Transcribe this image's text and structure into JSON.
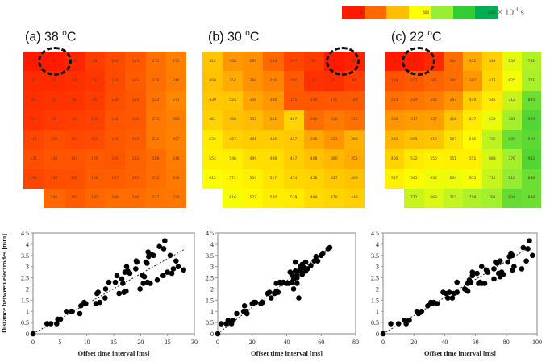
{
  "legend": {
    "colors": [
      "#ff1a00",
      "#ff6a00",
      "#ffbf00",
      "#ffff00",
      "#99ee33",
      "#33cc33",
      "#00b050"
    ],
    "labels": [
      "0",
      "",
      "",
      "600",
      "",
      "",
      "1200"
    ],
    "unit_prefix": "× 10",
    "unit_exp": "-4",
    "unit_suffix": " s"
  },
  "colormap": {
    "min": 0,
    "max": 1200
  },
  "panels": [
    {
      "title_prefix": "(a) 38 ",
      "title_sup": "o",
      "title_suffix": "C",
      "grid": [
        [
          0,
          0,
          30,
          88,
          120,
          154,
          215,
          251
        ],
        [
          43,
          43,
          53,
          71,
          120,
          165,
          210,
          246
        ],
        [
          56,
          63,
          66,
          86,
          130,
          154,
          222,
          271
        ],
        [
          59,
          83,
          90,
          100,
          148,
          156,
          233,
          250
        ],
        [
          111,
          129,
          114,
          123,
          158,
          169,
          234,
          257
        ],
        [
          131,
          148,
          148,
          159,
          150,
          183,
          208,
          248
        ],
        [
          108,
          130,
          132,
          168,
          167,
          185,
          212,
          238
        ],
        [
          null,
          194,
          165,
          187,
          208,
          206,
          227,
          230
        ]
      ],
      "origin_cell": [
        0,
        1
      ]
    },
    {
      "title_prefix": "(b) 30 ",
      "title_sup": "o",
      "title_suffix": "C",
      "grid": [
        [
          422,
          308,
          289,
          194,
          107,
          83,
          0,
          18
        ],
        [
          408,
          354,
          294,
          256,
          160,
          57,
          51,
          89
        ],
        [
          430,
          424,
          338,
          306,
          155,
          150,
          155,
          160
        ],
        [
          461,
          408,
          392,
          351,
          467,
          206,
          238,
          213
        ],
        [
          536,
          457,
          441,
          445,
          427,
          346,
          303,
          368
        ],
        [
          554,
          546,
          499,
          498,
          447,
          408,
          380,
          352
        ],
        [
          612,
          572,
          550,
          517,
          474,
          458,
          427,
          409
        ],
        [
          null,
          616,
          577,
          540,
          539,
          489,
          470,
          449
        ]
      ],
      "origin_cell": [
        0,
        6
      ]
    },
    {
      "title_prefix": "(c) 22 ",
      "title_sup": "o",
      "title_suffix": "C",
      "grid": [
        [
          0,
          0,
          37,
          204,
          351,
          449,
          654,
          752
        ],
        [
          140,
          157,
          185,
          204,
          307,
          473,
          625,
          771
        ],
        [
          214,
          229,
          245,
          297,
          449,
          542,
          712,
          895
        ],
        [
          302,
          317,
          327,
          416,
          537,
          639,
          781,
          939
        ],
        [
          380,
          405,
          419,
          507,
          585,
          732,
          890,
          919
        ],
        [
          460,
          532,
          556,
          551,
          551,
          688,
          776,
          942
        ],
        [
          557,
          585,
          634,
          634,
          615,
          712,
          810,
          888
        ],
        [
          null,
          712,
          668,
          717,
          759,
          781,
          904,
          888
        ]
      ],
      "origin_cell": [
        0,
        1
      ]
    }
  ],
  "chart_data": [
    {
      "type": "scatter",
      "title": "",
      "xlabel": "Offset time interval [ms]",
      "ylabel": "Distance between electrodes [mm]",
      "xlim": [
        0,
        30
      ],
      "ylim": [
        0,
        4.5
      ],
      "xticks": [
        "0",
        "5",
        "10",
        "15",
        "20",
        "25",
        "30"
      ],
      "yticks": [
        "0",
        "0.5",
        "1",
        "1.5",
        "2",
        "2.5",
        "3",
        "3.5",
        "4",
        "4.5"
      ],
      "trendline": {
        "x": [
          0,
          28
        ],
        "y": [
          0,
          3.75
        ]
      },
      "points": [
        [
          0,
          0
        ],
        [
          2.6,
          0.45
        ],
        [
          3.3,
          0.45
        ],
        [
          4.4,
          0.45
        ],
        [
          4.6,
          0.65
        ],
        [
          5.1,
          0.65
        ],
        [
          6.2,
          1.0
        ],
        [
          7.1,
          1.0
        ],
        [
          7.3,
          1.0
        ],
        [
          8.7,
          0.9
        ],
        [
          8.9,
          1.25
        ],
        [
          9.3,
          1.35
        ],
        [
          9.5,
          1.4
        ],
        [
          9.8,
          1.35
        ],
        [
          11.7,
          1.35
        ],
        [
          11.9,
          1.8
        ],
        [
          12.1,
          1.85
        ],
        [
          12.4,
          1.4
        ],
        [
          13.4,
          1.6
        ],
        [
          13.5,
          2.0
        ],
        [
          14.1,
          2.3
        ],
        [
          15.3,
          2.3
        ],
        [
          15.6,
          2.6
        ],
        [
          16.0,
          1.8
        ],
        [
          16.5,
          2.45
        ],
        [
          16.7,
          2.25
        ],
        [
          16.9,
          1.85
        ],
        [
          17.1,
          2.75
        ],
        [
          17.3,
          1.9
        ],
        [
          17.4,
          3.0
        ],
        [
          17.6,
          2.8
        ],
        [
          18.0,
          2.7
        ],
        [
          19.1,
          2.9
        ],
        [
          19.2,
          3.25
        ],
        [
          19.3,
          3.2
        ],
        [
          19.9,
          2.0
        ],
        [
          20.4,
          2.6
        ],
        [
          20.5,
          2.25
        ],
        [
          20.7,
          2.55
        ],
        [
          21.0,
          3.2
        ],
        [
          21.2,
          3.15
        ],
        [
          21.3,
          2.3
        ],
        [
          21.4,
          3.65
        ],
        [
          21.5,
          3.45
        ],
        [
          21.8,
          2.25
        ],
        [
          22.0,
          3.55
        ],
        [
          22.4,
          3.5
        ],
        [
          23.1,
          2.4
        ],
        [
          23.5,
          3.9
        ],
        [
          24.2,
          2.6
        ],
        [
          24.3,
          3.8
        ],
        [
          24.5,
          4.15
        ],
        [
          25.0,
          2.75
        ],
        [
          25.5,
          3.5
        ],
        [
          25.8,
          2.7
        ],
        [
          26.1,
          2.9
        ],
        [
          26.6,
          3.25
        ],
        [
          27.0,
          3.0
        ],
        [
          28.0,
          2.85
        ]
      ]
    },
    {
      "type": "scatter",
      "title": "",
      "xlabel": "Offset time interval [ms]",
      "ylabel": "",
      "xlim": [
        0,
        80
      ],
      "ylim": [
        0,
        4.5
      ],
      "xticks": [
        "0",
        "20",
        "40",
        "60",
        "80"
      ],
      "yticks": [
        "0",
        "0.5",
        "1",
        "1.5",
        "2",
        "2.5",
        "3",
        "3.5",
        "4",
        "4.5"
      ],
      "trendline": {
        "x": [
          0,
          65
        ],
        "y": [
          0,
          3.85
        ]
      },
      "points": [
        [
          0,
          0
        ],
        [
          2,
          0.45
        ],
        [
          5,
          0.45
        ],
        [
          6,
          0.6
        ],
        [
          8,
          0.45
        ],
        [
          9,
          0.6
        ],
        [
          11,
          0.9
        ],
        [
          15,
          1.0
        ],
        [
          15.5,
          1.25
        ],
        [
          16,
          0.95
        ],
        [
          16.5,
          1.0
        ],
        [
          17,
          0.9
        ],
        [
          20,
          1.35
        ],
        [
          21,
          1.4
        ],
        [
          22,
          1.4
        ],
        [
          25,
          1.35
        ],
        [
          26,
          1.4
        ],
        [
          29,
          1.8
        ],
        [
          30,
          1.85
        ],
        [
          31,
          1.6
        ],
        [
          33,
          1.8
        ],
        [
          34,
          1.9
        ],
        [
          34,
          2.25
        ],
        [
          35,
          1.85
        ],
        [
          36,
          2.3
        ],
        [
          37,
          2.25
        ],
        [
          38,
          2.3
        ],
        [
          40,
          2.25
        ],
        [
          41,
          2.25
        ],
        [
          42,
          2.75
        ],
        [
          43,
          2.3
        ],
        [
          43,
          2.65
        ],
        [
          44,
          2.0
        ],
        [
          44,
          2.45
        ],
        [
          45,
          2.8
        ],
        [
          45,
          3.2
        ],
        [
          46,
          2.5
        ],
        [
          46,
          2.25
        ],
        [
          46,
          2.6
        ],
        [
          47,
          1.6
        ],
        [
          47,
          2.8
        ],
        [
          48,
          3.0
        ],
        [
          48,
          2.8
        ],
        [
          49,
          2.65
        ],
        [
          49,
          3.1
        ],
        [
          50,
          2.95
        ],
        [
          51,
          2.8
        ],
        [
          51,
          3.2
        ],
        [
          52,
          2.9
        ],
        [
          54,
          3.05
        ],
        [
          56,
          3.25
        ],
        [
          57,
          3.3
        ],
        [
          57,
          3.45
        ],
        [
          58,
          3.25
        ],
        [
          60,
          3.5
        ],
        [
          61,
          3.6
        ],
        [
          64,
          3.8
        ],
        [
          65,
          3.85
        ]
      ]
    },
    {
      "type": "scatter",
      "title": "",
      "xlabel": "Offset time interval [ms]",
      "ylabel": "",
      "xlim": [
        0,
        100
      ],
      "ylim": [
        0,
        4.5
      ],
      "xticks": [
        "0",
        "20",
        "40",
        "60",
        "80",
        "100"
      ],
      "yticks": [
        "0",
        "0.5",
        "1",
        "1.5",
        "2",
        "2.5",
        "3",
        "3.5",
        "4",
        "4.5"
      ],
      "trendline": {
        "x": [
          0,
          95
        ],
        "y": [
          0,
          3.85
        ]
      },
      "points": [
        [
          0,
          0
        ],
        [
          5,
          0.45
        ],
        [
          10,
          0.45
        ],
        [
          14,
          0.6
        ],
        [
          15,
          0.45
        ],
        [
          17,
          0.6
        ],
        [
          22,
          1.0
        ],
        [
          23,
          0.9
        ],
        [
          24,
          0.95
        ],
        [
          25,
          1.0
        ],
        [
          29,
          1.25
        ],
        [
          31,
          1.4
        ],
        [
          32,
          1.35
        ],
        [
          33,
          1.4
        ],
        [
          35,
          1.35
        ],
        [
          39,
          1.85
        ],
        [
          41,
          1.8
        ],
        [
          42,
          1.6
        ],
        [
          43,
          1.85
        ],
        [
          45,
          1.6
        ],
        [
          46,
          1.8
        ],
        [
          48,
          2.3
        ],
        [
          48,
          1.85
        ],
        [
          53,
          2.0
        ],
        [
          54,
          1.95
        ],
        [
          55,
          1.9
        ],
        [
          55,
          2.25
        ],
        [
          56,
          2.4
        ],
        [
          57,
          2.3
        ],
        [
          58,
          2.6
        ],
        [
          58,
          2.75
        ],
        [
          61,
          2.7
        ],
        [
          62,
          2.25
        ],
        [
          63,
          2.3
        ],
        [
          64,
          3.0
        ],
        [
          64,
          2.25
        ],
        [
          66,
          2.25
        ],
        [
          67,
          2.85
        ],
        [
          68,
          2.75
        ],
        [
          72,
          2.45
        ],
        [
          72,
          2.9
        ],
        [
          73,
          3.2
        ],
        [
          74,
          3.15
        ],
        [
          75,
          2.7
        ],
        [
          76,
          3.25
        ],
        [
          76,
          2.55
        ],
        [
          77,
          2.75
        ],
        [
          78,
          2.65
        ],
        [
          81,
          3.2
        ],
        [
          82,
          3.45
        ],
        [
          83,
          3.6
        ],
        [
          84,
          2.85
        ],
        [
          84,
          3.5
        ],
        [
          85,
          3.0
        ],
        [
          90,
          2.9
        ],
        [
          91,
          3.85
        ],
        [
          93,
          3.25
        ],
        [
          94,
          3.8
        ],
        [
          95,
          4.15
        ],
        [
          97,
          3.5
        ]
      ]
    }
  ]
}
